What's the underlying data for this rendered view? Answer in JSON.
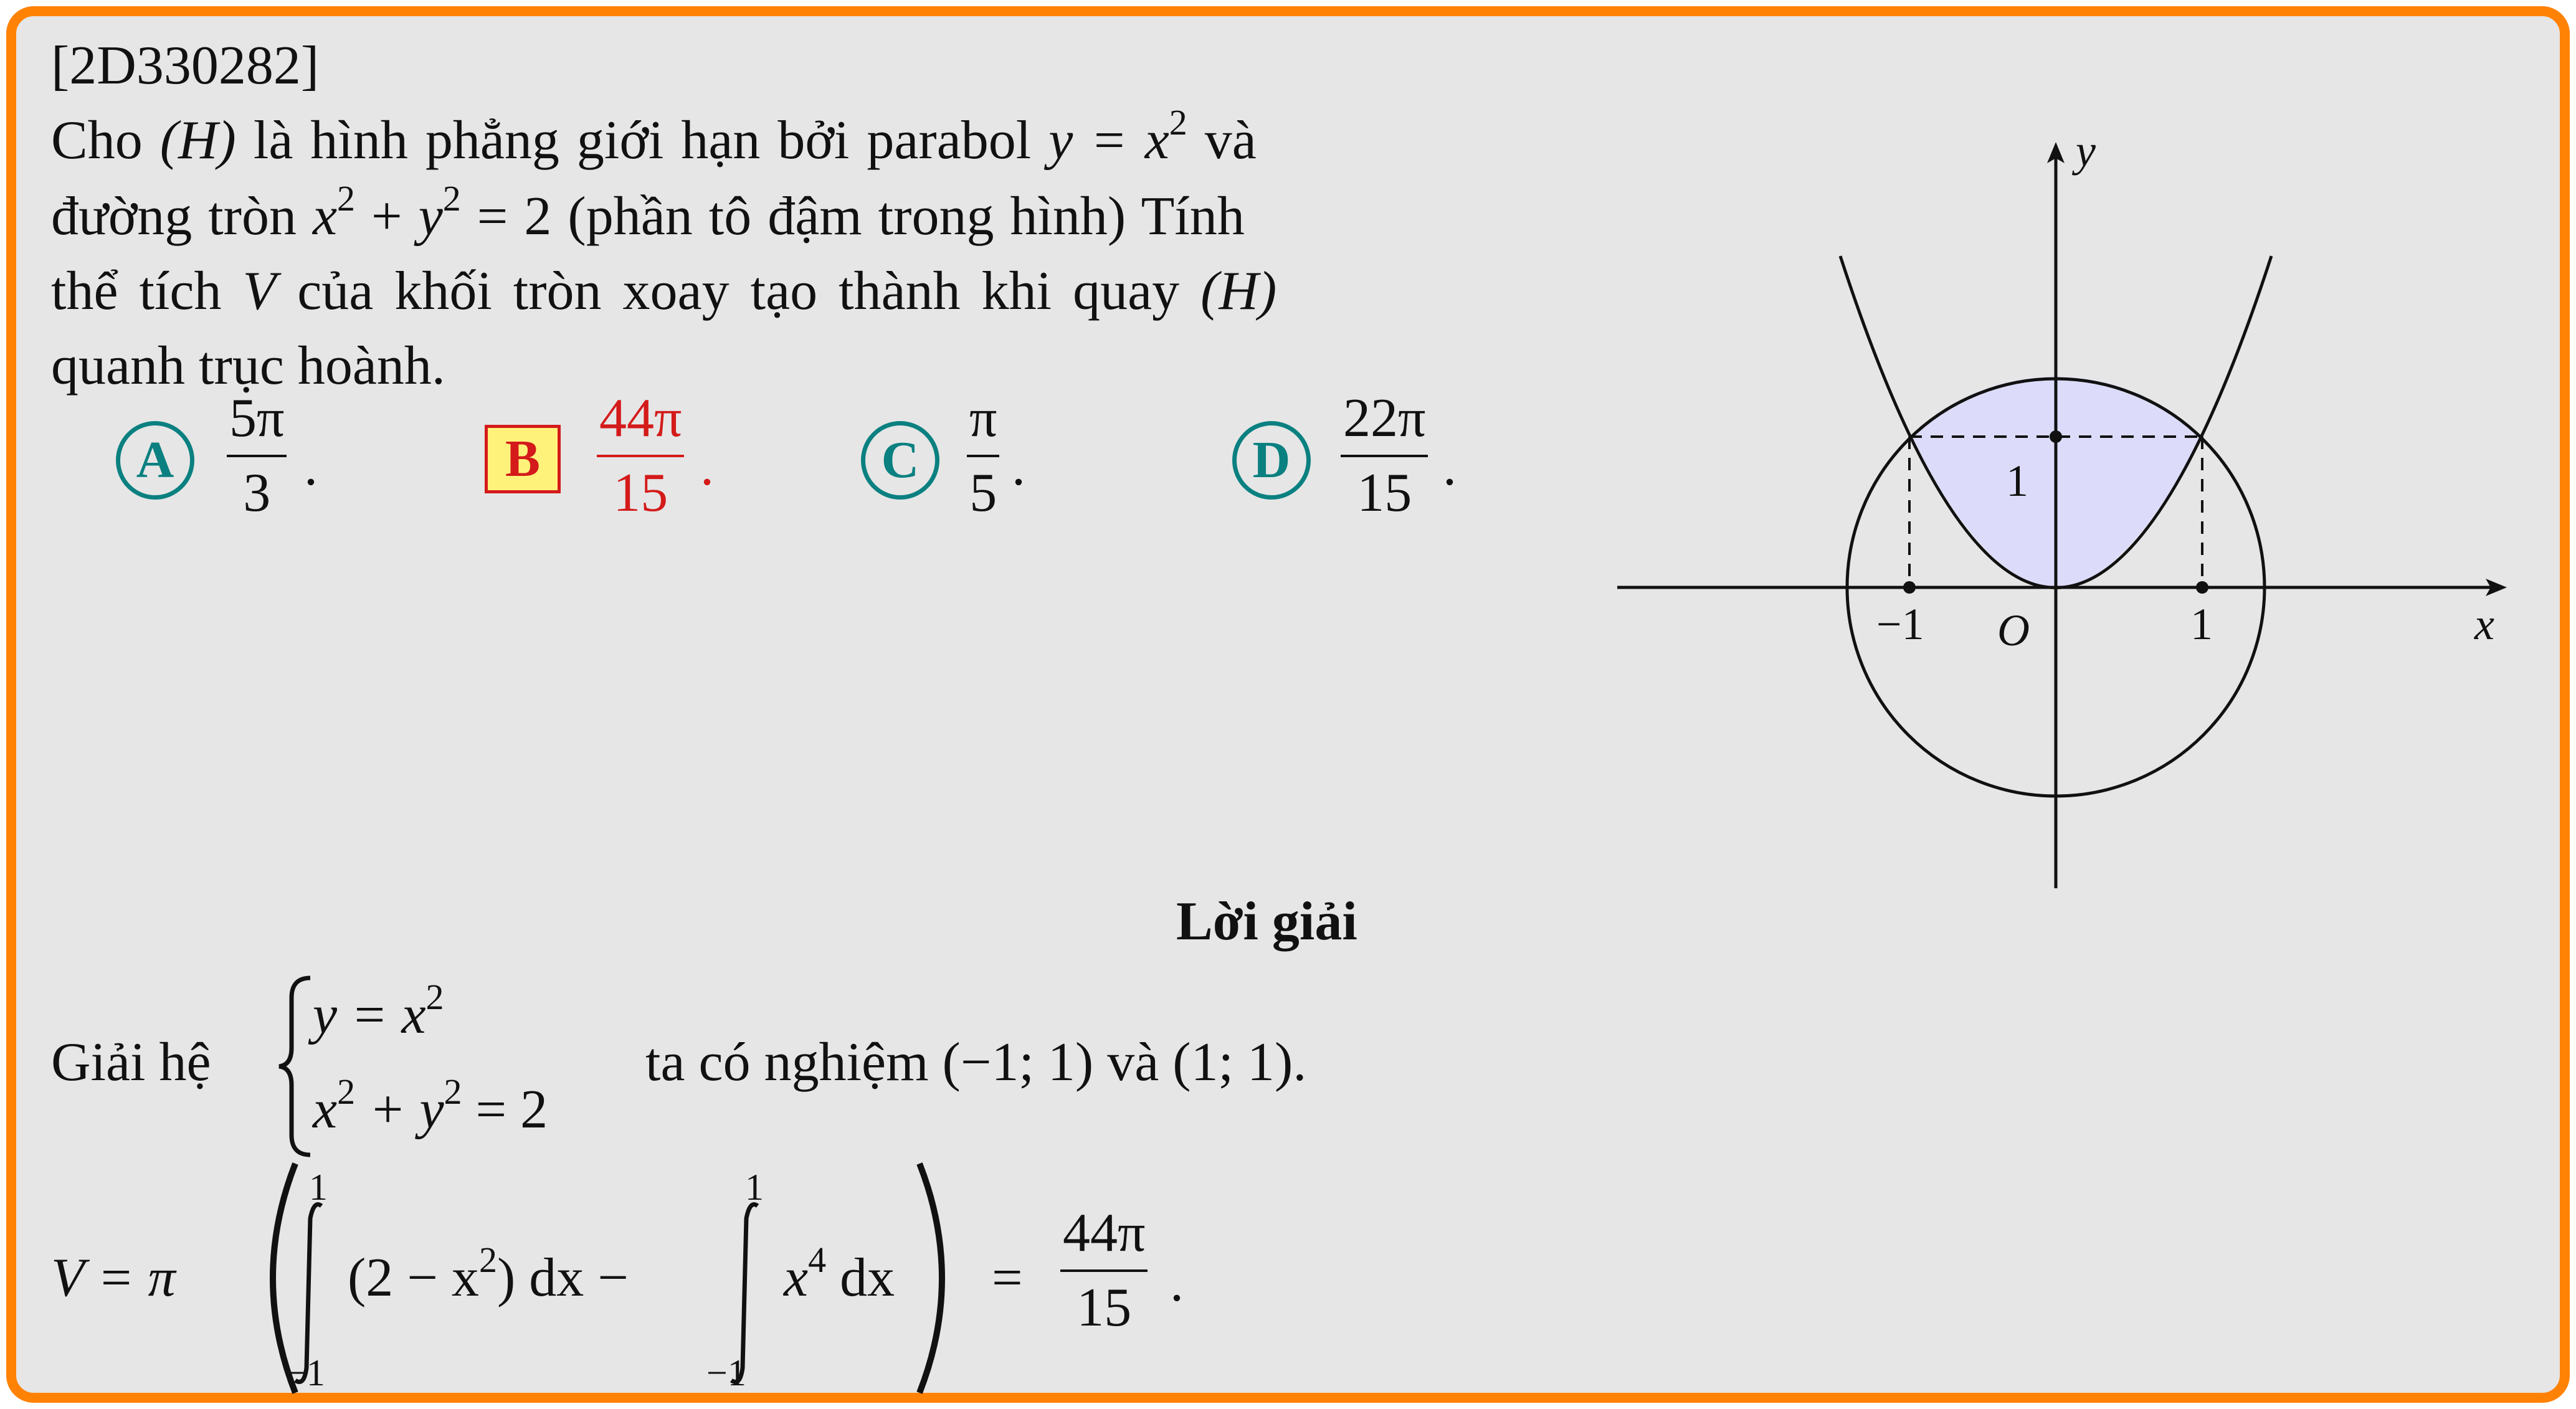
{
  "problem": {
    "id": "[2D330282]",
    "line1_a": "Cho ",
    "line1_H": "(H)",
    "line1_b": " là hình phẳng giới hạn bởi parabol ",
    "line1_eq_y": "y = x",
    "line1_eq_exp": "2",
    "line1_c": " và",
    "line2_a": "đường tròn ",
    "line2_x": "x",
    "line2_exp1": "2",
    "line2_plus": " + ",
    "line2_y": "y",
    "line2_exp2": "2",
    "line2_eq": " = 2 ",
    "line2_b": "(phần tô đậm trong hình) Tính",
    "line3_a": "thể tích ",
    "line3_V": "V",
    "line3_b": " của khối tròn xoay tạo thành khi quay ",
    "line3_H": "(H)",
    "line4": "quanh trục hoành."
  },
  "choices": [
    {
      "letter": "A",
      "num": "5π",
      "den": "3",
      "end": "."
    },
    {
      "letter": "B",
      "num": "44π",
      "den": "15",
      "end": ".",
      "correct": true
    },
    {
      "letter": "C",
      "num": "π",
      "den": "5",
      "end": "."
    },
    {
      "letter": "D",
      "num": "22π",
      "den": "15",
      "end": "."
    }
  ],
  "figure": {
    "axis_x": "x",
    "axis_y": "y",
    "origin": "O",
    "tick_minus1": "−1",
    "tick_1": "1",
    "tick_y1": "1",
    "shade_color": "#dcdcfa"
  },
  "solution": {
    "title": "Lời giải",
    "solve_prefix": "Giải hệ",
    "sys1_a": "y = x",
    "sys1_exp": "2",
    "sys2_x": "x",
    "sys2_exp1": "2",
    "sys2_mid": " + y",
    "sys2_exp2": "2",
    "sys2_end": " = 2",
    "solve_suffix": "ta có nghiệm (−1; 1) và (1; 1).",
    "v_lhs": "V = π",
    "int1_upper": "1",
    "int1_lower": "−1",
    "int1_body_a": "(2 − x",
    "int1_body_exp": "2",
    "int1_body_b": ") dx −",
    "int2_upper": "1",
    "int2_lower": "−1",
    "int2_body_a": "x",
    "int2_body_exp": "4",
    "int2_body_b": " dx",
    "result_eq": "=",
    "result_num": "44π",
    "result_den": "15",
    "result_end": "."
  },
  "colors": {
    "border": "#ff8205",
    "background": "#e6e6e6",
    "choice_teal": "#0b8080",
    "correct_red": "#d41a1a",
    "correct_fill": "#fff27a"
  }
}
